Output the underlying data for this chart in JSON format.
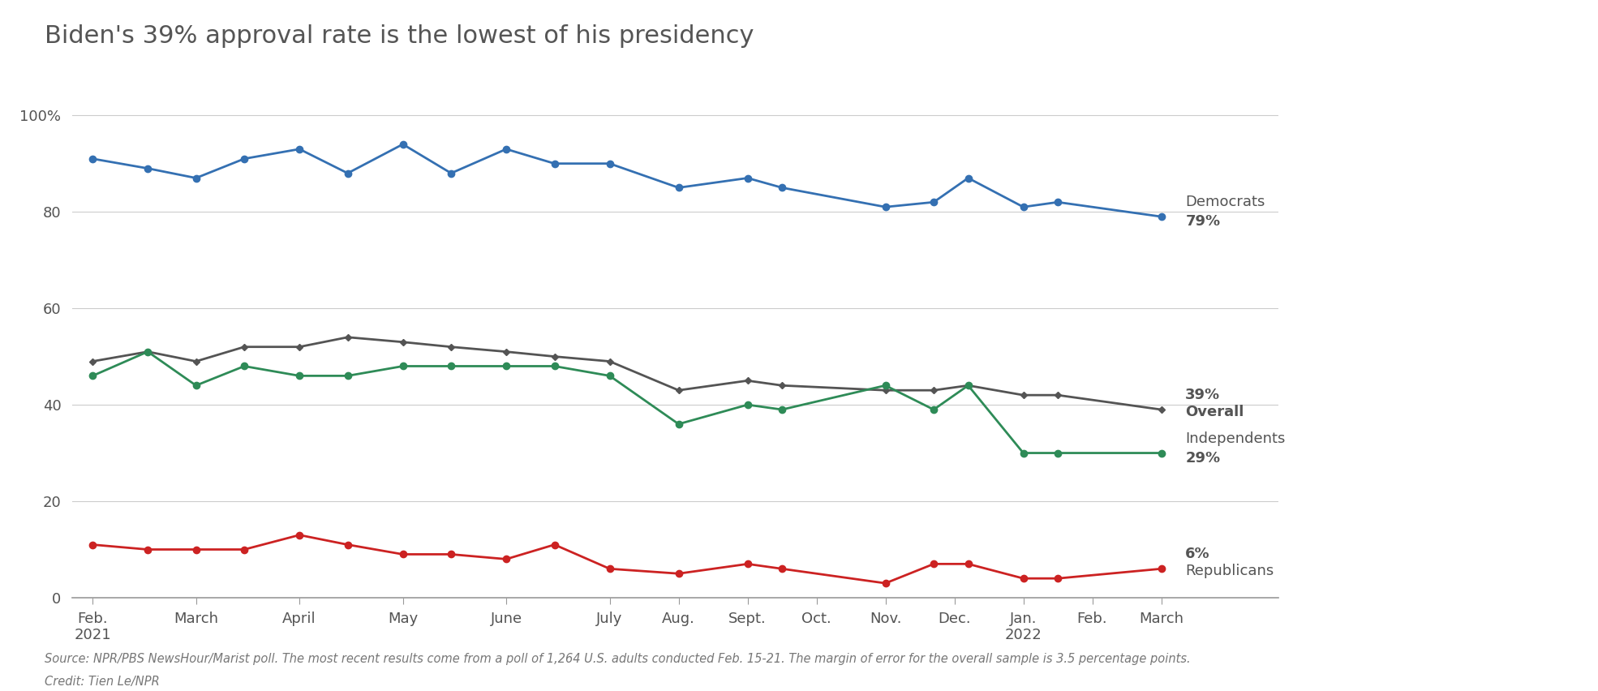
{
  "title": "Biden's 39% approval rate is the lowest of his presidency",
  "source_text": "Source: NPR/PBS NewsHour/Marist poll. The most recent results come from a poll of 1,264 U.S. adults conducted Feb. 15-21. The margin of error for the overall sample is 3.5 percentage points.",
  "credit_text": "Credit: Tien Le/NPR",
  "x_labels": [
    "Feb.\n2021",
    "March",
    "April",
    "May",
    "June",
    "July",
    "Aug.",
    "Sept.",
    "Oct.",
    "Nov.",
    "Dec.",
    "Jan.\n2022",
    "Feb.",
    "March"
  ],
  "x_tick_positions": [
    0.0,
    1.5,
    3.0,
    4.5,
    6.0,
    7.5,
    8.5,
    9.5,
    10.5,
    11.5,
    12.5,
    13.5,
    14.5,
    15.5
  ],
  "dem_data": [
    [
      0.0,
      91
    ],
    [
      0.8,
      89
    ],
    [
      1.5,
      87
    ],
    [
      2.2,
      91
    ],
    [
      3.0,
      93
    ],
    [
      3.7,
      88
    ],
    [
      4.5,
      94
    ],
    [
      5.2,
      88
    ],
    [
      6.0,
      93
    ],
    [
      6.7,
      90
    ],
    [
      7.5,
      90
    ],
    [
      8.5,
      85
    ],
    [
      9.5,
      87
    ],
    [
      10.0,
      85
    ],
    [
      11.5,
      81
    ],
    [
      12.2,
      82
    ],
    [
      12.7,
      87
    ],
    [
      13.5,
      81
    ],
    [
      14.0,
      82
    ],
    [
      15.5,
      79
    ]
  ],
  "overall_data": [
    [
      0.0,
      49
    ],
    [
      0.8,
      51
    ],
    [
      1.5,
      49
    ],
    [
      2.2,
      52
    ],
    [
      3.0,
      52
    ],
    [
      3.7,
      54
    ],
    [
      4.5,
      53
    ],
    [
      5.2,
      52
    ],
    [
      6.0,
      51
    ],
    [
      6.7,
      50
    ],
    [
      7.5,
      49
    ],
    [
      8.5,
      43
    ],
    [
      9.5,
      45
    ],
    [
      10.0,
      44
    ],
    [
      11.5,
      43
    ],
    [
      12.2,
      43
    ],
    [
      12.7,
      44
    ],
    [
      13.5,
      42
    ],
    [
      14.0,
      42
    ],
    [
      15.5,
      39
    ]
  ],
  "ind_data": [
    [
      0.0,
      46
    ],
    [
      0.8,
      51
    ],
    [
      1.5,
      44
    ],
    [
      2.2,
      48
    ],
    [
      3.0,
      46
    ],
    [
      3.7,
      46
    ],
    [
      4.5,
      48
    ],
    [
      5.2,
      48
    ],
    [
      6.0,
      48
    ],
    [
      6.7,
      48
    ],
    [
      7.5,
      46
    ],
    [
      8.5,
      36
    ],
    [
      9.5,
      40
    ],
    [
      10.0,
      39
    ],
    [
      11.5,
      44
    ],
    [
      12.2,
      39
    ],
    [
      12.7,
      44
    ],
    [
      13.5,
      30
    ],
    [
      14.0,
      30
    ],
    [
      15.5,
      30
    ]
  ],
  "rep_data": [
    [
      0.0,
      11
    ],
    [
      0.8,
      10
    ],
    [
      1.5,
      10
    ],
    [
      2.2,
      10
    ],
    [
      3.0,
      13
    ],
    [
      3.7,
      11
    ],
    [
      4.5,
      9
    ],
    [
      5.2,
      9
    ],
    [
      6.0,
      8
    ],
    [
      6.7,
      11
    ],
    [
      7.5,
      6
    ],
    [
      8.5,
      5
    ],
    [
      9.5,
      7
    ],
    [
      10.0,
      6
    ],
    [
      11.5,
      3
    ],
    [
      12.2,
      7
    ],
    [
      12.7,
      7
    ],
    [
      13.5,
      4
    ],
    [
      14.0,
      4
    ],
    [
      15.5,
      6
    ]
  ],
  "dem_color": "#3470b2",
  "overall_color": "#545454",
  "ind_color": "#2e8b57",
  "rep_color": "#cc2222",
  "background_color": "#ffffff",
  "label_text_color": "#545454",
  "title_color": "#555555",
  "grid_color": "#cccccc",
  "ylim": [
    0,
    106
  ],
  "yticks": [
    0,
    20,
    40,
    60,
    80,
    100
  ],
  "ytick_labels": [
    "0",
    "20",
    "40",
    "60",
    "80",
    "100%"
  ],
  "label_fontsize": 13,
  "title_fontsize": 22,
  "source_fontsize": 10.5,
  "linewidth": 2.0,
  "markersize": 6,
  "xlim": [
    -0.3,
    17.2
  ]
}
